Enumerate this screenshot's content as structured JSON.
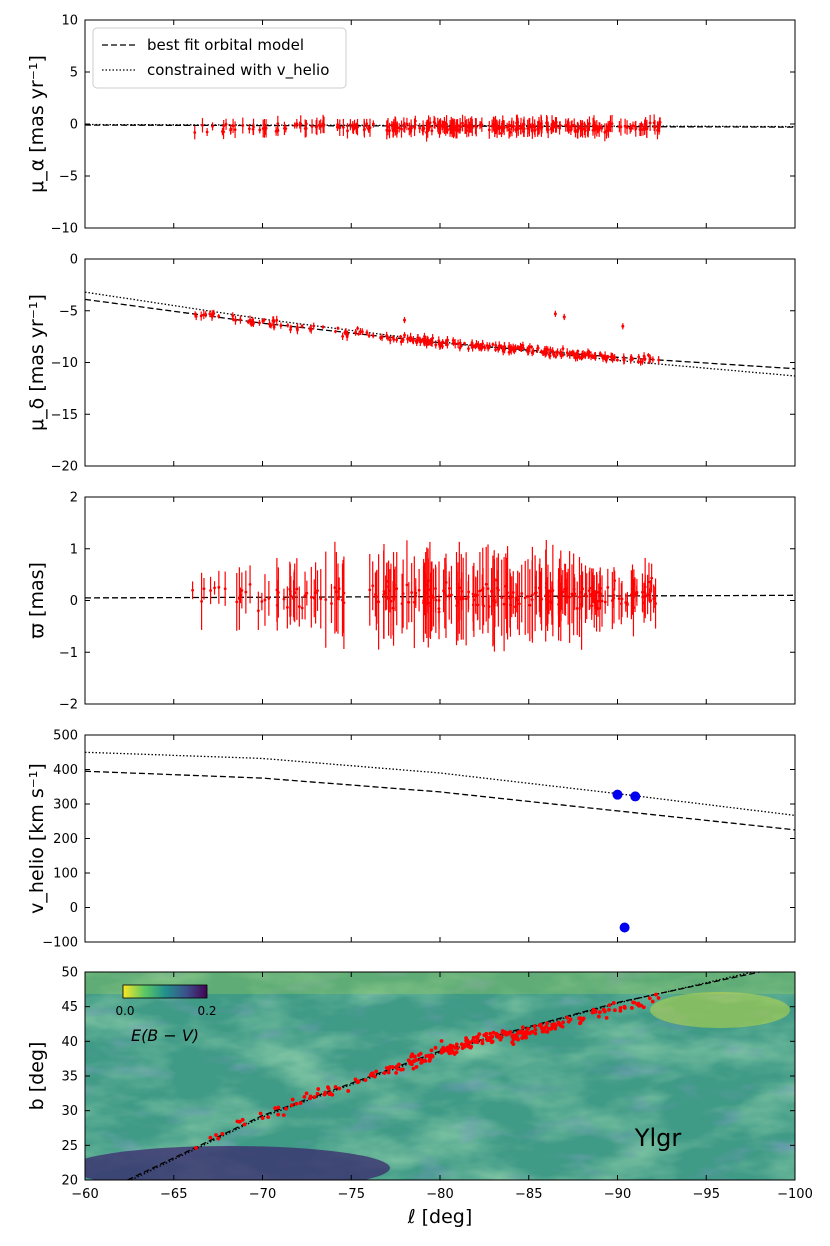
{
  "chart_data": [
    {
      "type": "scatter",
      "panel": "mu_alpha",
      "ylabel": "μ_α [mas yr⁻¹]",
      "ylim": [
        -10,
        10
      ],
      "yticks": [
        -10,
        -5,
        0,
        5,
        10
      ],
      "xlim": [
        -60,
        -100
      ],
      "legend": {
        "position": "top-left",
        "entries": [
          {
            "label": "best fit orbital model",
            "style": "dashed"
          },
          {
            "label": "constrained with v_helio",
            "style": "dotted"
          }
        ]
      },
      "series": [
        {
          "name": "best fit orbital model",
          "style": "dashed",
          "x": [
            -60,
            -70,
            -80,
            -90,
            -100
          ],
          "y": [
            -0.1,
            -0.15,
            -0.2,
            -0.25,
            -0.3
          ]
        },
        {
          "name": "constrained with v_helio",
          "style": "dotted",
          "x": [
            -60,
            -70,
            -80,
            -90,
            -100
          ],
          "y": [
            -0.05,
            -0.1,
            -0.15,
            -0.2,
            -0.25
          ]
        },
        {
          "name": "stars",
          "style": "errorbar",
          "x_range": [
            -66,
            -92.5
          ],
          "y_center": -0.3,
          "y_spread": 1.2
        }
      ]
    },
    {
      "type": "scatter",
      "panel": "mu_delta",
      "ylabel": "μ_δ [mas yr⁻¹]",
      "ylim": [
        -20,
        0
      ],
      "yticks": [
        -20,
        -15,
        -10,
        -5,
        0
      ],
      "xlim": [
        -60,
        -100
      ],
      "series": [
        {
          "name": "best fit orbital model",
          "style": "dashed",
          "x": [
            -60,
            -70,
            -80,
            -90,
            -100
          ],
          "y": [
            -3.9,
            -6.2,
            -8.1,
            -9.5,
            -10.6
          ]
        },
        {
          "name": "constrained with v_helio",
          "style": "dotted",
          "x": [
            -60,
            -70,
            -80,
            -90,
            -100
          ],
          "y": [
            -3.2,
            -5.8,
            -8.0,
            -9.8,
            -11.3
          ]
        },
        {
          "name": "stars",
          "style": "errorbar",
          "x_range": [
            -66,
            -92.5
          ],
          "trend": "follows model",
          "outliers_y": [
            -5.2,
            -6.5
          ]
        }
      ]
    },
    {
      "type": "scatter",
      "panel": "parallax",
      "ylabel": "ϖ [mas]",
      "ylim": [
        -2,
        2
      ],
      "yticks": [
        -2,
        -1,
        0,
        1,
        2
      ],
      "xlim": [
        -60,
        -100
      ],
      "series": [
        {
          "name": "best fit orbital model",
          "style": "dashed",
          "x": [
            -60,
            -100
          ],
          "y": [
            0.05,
            0.1
          ]
        },
        {
          "name": "stars",
          "style": "errorbar",
          "x_range": [
            -66,
            -92.5
          ],
          "y_center": 0.1,
          "y_spread": 0.8
        }
      ]
    },
    {
      "type": "scatter",
      "panel": "v_helio",
      "ylabel": "v_helio [km s⁻¹]",
      "ylim": [
        -100,
        500
      ],
      "yticks": [
        -100,
        0,
        100,
        200,
        300,
        400,
        500
      ],
      "xlim": [
        -60,
        -100
      ],
      "series": [
        {
          "name": "best fit orbital model",
          "style": "dashed",
          "x": [
            -60,
            -70,
            -80,
            -90,
            -100
          ],
          "y": [
            395,
            375,
            335,
            280,
            225
          ]
        },
        {
          "name": "constrained with v_helio",
          "style": "dotted",
          "x": [
            -60,
            -70,
            -80,
            -90,
            -100
          ],
          "y": [
            450,
            432,
            390,
            330,
            267
          ]
        },
        {
          "name": "measured",
          "style": "marker",
          "color": "#0000ee",
          "x": [
            -90.0,
            -91.0,
            -90.4
          ],
          "y": [
            327,
            322,
            -58
          ]
        }
      ]
    },
    {
      "type": "scatter",
      "panel": "sky",
      "xlabel": "ℓ [deg]",
      "ylabel": "b [deg]",
      "xlim": [
        -60,
        -100
      ],
      "ylim": [
        20,
        50
      ],
      "xticks": [
        -60,
        -65,
        -70,
        -75,
        -80,
        -85,
        -90,
        -95,
        -100
      ],
      "yticks": [
        20,
        25,
        30,
        35,
        40,
        45,
        50
      ],
      "background": "E(B−V) dust map",
      "colorbar": {
        "label": "E(B − V)",
        "min_label": "0.0",
        "max_label": "0.2",
        "colors": [
          "#fde725",
          "#5ec962",
          "#21918c",
          "#3b528b",
          "#440154"
        ]
      },
      "annotation": "Ylgr",
      "series": [
        {
          "name": "orbit model",
          "style": "dashed",
          "x": [
            -62.4,
            -70,
            -80,
            -90,
            -98
          ],
          "y": [
            20,
            29.3,
            38.6,
            45.6,
            50
          ]
        },
        {
          "name": "orbit constrained",
          "style": "dotted",
          "x": [
            -62.6,
            -70,
            -80,
            -90,
            -97.6
          ],
          "y": [
            20,
            29.1,
            38.4,
            45.5,
            50
          ]
        },
        {
          "name": "stars",
          "style": "marker",
          "color": "#ff0000",
          "x_range": [
            -66,
            -92.5
          ],
          "note": "scattered along orbit"
        }
      ]
    }
  ],
  "colors": {
    "stars": "#ff0000",
    "measured": "#0000ee",
    "model": "#000000"
  }
}
